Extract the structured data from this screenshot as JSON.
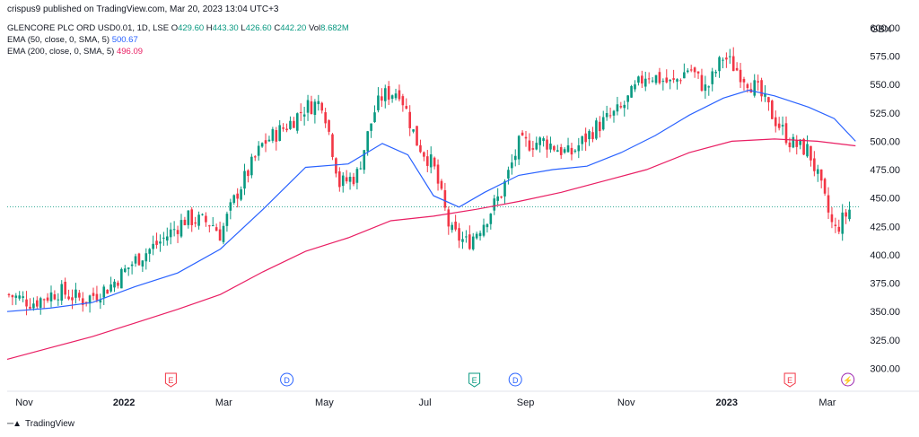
{
  "published": "crispus9 published on TradingView.com, Mar 20, 2023 13:04 UTC+3",
  "legend": {
    "symbol": "GLENCORE PLC ORD USD0.01, 1D, LSE",
    "open_label": "O",
    "open": "429.60",
    "high_label": "H",
    "high": "443.30",
    "low_label": "L",
    "low": "426.60",
    "close_label": "C",
    "close": "442.20",
    "vol_label": "Vol",
    "vol": "8.682M",
    "ema50_label": "EMA (50, close, 0, SMA, 5)",
    "ema50_value": "500.67",
    "ema200_label": "EMA (200, close, 0, SMA, 5)",
    "ema200_value": "496.09"
  },
  "currency": "GBX",
  "footer": "TradingView",
  "colors": {
    "up": "#089981",
    "down": "#f23645",
    "ema50": "#2962ff",
    "ema200": "#e91e63",
    "current_line": "#089981",
    "grid": "#f0f3fa"
  },
  "events": [
    {
      "label": "E",
      "date": "Feb",
      "color": "#f23645"
    },
    {
      "label": "D",
      "date": "Apr",
      "color": "#2962ff"
    },
    {
      "label": "E",
      "date": "Aug",
      "color": "#089981"
    },
    {
      "label": "D",
      "date": "Sep",
      "color": "#2962ff"
    },
    {
      "label": "E",
      "date": "Feb 2023",
      "color": "#f23645"
    },
    {
      "label": "⚡",
      "date": "Mar 2023",
      "color": "#9c27b0"
    }
  ],
  "chart_data": {
    "type": "line",
    "ylabel": "GBX",
    "ylim": [
      283,
      607
    ],
    "xlim": [
      0,
      100
    ],
    "x_ticks": [
      "Nov",
      "2022",
      "Mar",
      "May",
      "Jul",
      "Sep",
      "Nov",
      "2023",
      "Mar"
    ],
    "x_tick_pos": [
      2,
      13.7,
      25.4,
      37.2,
      49,
      60.8,
      72.6,
      84.4,
      96.2
    ],
    "y_ticks": [
      600,
      575,
      550,
      525,
      500,
      475,
      450,
      425,
      400,
      375,
      350,
      325,
      300
    ],
    "current_price": 442.2,
    "price_x": [
      0,
      3,
      6,
      9,
      12,
      15,
      18,
      21,
      24,
      25,
      27,
      30,
      33,
      35,
      37,
      39,
      41,
      43,
      44,
      46,
      48,
      50,
      52,
      54,
      56,
      58,
      60,
      63,
      66,
      69,
      72,
      75,
      78,
      80,
      82,
      84,
      86,
      88,
      90,
      92,
      94,
      95,
      97,
      99,
      100
    ],
    "price_y": [
      365,
      358,
      368,
      360,
      372,
      395,
      412,
      432,
      428,
      418,
      455,
      498,
      515,
      530,
      535,
      462,
      470,
      525,
      540,
      545,
      500,
      478,
      420,
      410,
      430,
      455,
      497,
      500,
      488,
      512,
      528,
      560,
      550,
      565,
      545,
      575,
      560,
      545,
      520,
      498,
      492,
      470,
      420,
      442,
      442
    ],
    "series": [
      {
        "name": "EMA (50, close, 0, SMA, 5)",
        "x": [
          0,
          5,
          10,
          15,
          20,
          25,
          30,
          35,
          40,
          44,
          47,
          50,
          53,
          56,
          60,
          64,
          68,
          72,
          76,
          80,
          84,
          87,
          90,
          94,
          97,
          99.5
        ],
        "y": [
          350,
          353,
          358,
          372,
          384,
          405,
          440,
          477,
          480,
          498,
          488,
          452,
          442,
          455,
          470,
          475,
          478,
          490,
          505,
          523,
          538,
          545,
          540,
          530,
          520,
          500
        ]
      },
      {
        "name": "EMA (200, close, 0, SMA, 5)",
        "x": [
          0,
          5,
          10,
          15,
          20,
          25,
          30,
          35,
          40,
          45,
          50,
          55,
          60,
          65,
          70,
          75,
          80,
          85,
          90,
          95,
          99.5
        ],
        "y": [
          308,
          318,
          328,
          340,
          352,
          365,
          385,
          403,
          415,
          430,
          434,
          440,
          447,
          455,
          465,
          475,
          490,
          500,
          502,
          500,
          496
        ]
      }
    ]
  }
}
